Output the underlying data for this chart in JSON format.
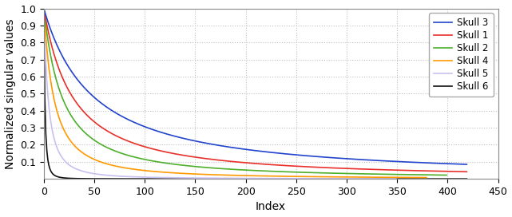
{
  "title": "",
  "xlabel": "Index",
  "ylabel": "Normalized singular values",
  "xlim": [
    0,
    450
  ],
  "ylim": [
    0,
    1.0
  ],
  "yticks": [
    0.1,
    0.2,
    0.3,
    0.4,
    0.5,
    0.6,
    0.7,
    0.8,
    0.9,
    1.0
  ],
  "xticks": [
    0,
    50,
    100,
    150,
    200,
    250,
    300,
    350,
    400,
    450
  ],
  "curves": [
    {
      "label": "Skull 1",
      "color": "#e8302a",
      "n": 420,
      "alpha": 0.62
    },
    {
      "label": "Skull 2",
      "color": "#4daf2a",
      "n": 380,
      "alpha": 0.72
    },
    {
      "label": "Skull 3",
      "color": "#2244cc",
      "n": 420,
      "alpha": 0.52
    },
    {
      "label": "Skull 4",
      "color": "#ff9900",
      "n": 380,
      "alpha": 0.8
    },
    {
      "label": "Skull 5",
      "color": "#c8c0f0",
      "n": 350,
      "alpha": 0.92
    },
    {
      "label": "Skull 6",
      "color": "#111111",
      "n": 420,
      "alpha": 1.6
    }
  ],
  "background_color": "#ffffff",
  "grid_color": "#c0c0c0",
  "legend_fontsize": 8.5,
  "axis_fontsize": 10,
  "tick_fontsize": 9,
  "linewidth": 1.2
}
